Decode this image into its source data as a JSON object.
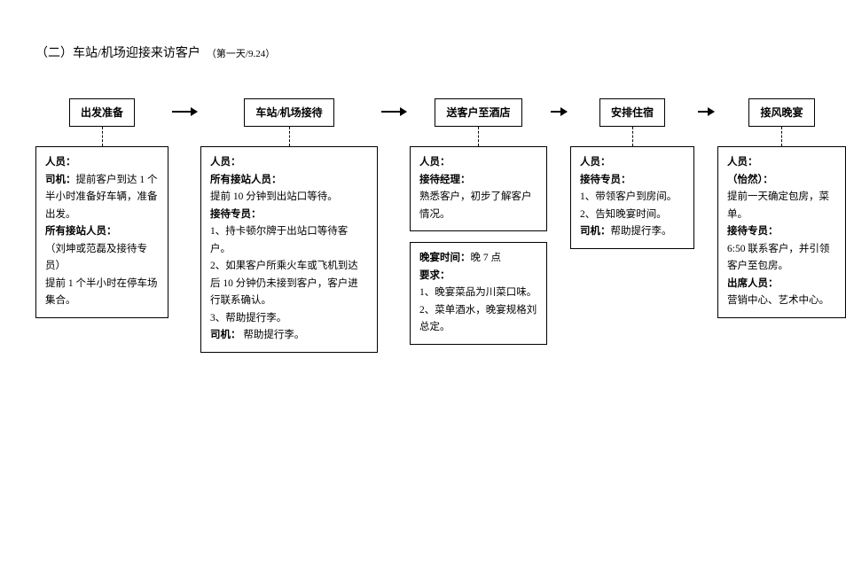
{
  "title": {
    "main": "（二）车站/机场迎接来访客户",
    "sub": "（第一天/9.24）"
  },
  "steps": [
    {
      "label": "出发准备"
    },
    {
      "label": "车站/机场接待"
    },
    {
      "label": "送客户至酒店"
    },
    {
      "label": "安排住宿"
    },
    {
      "label": "接风晚宴"
    }
  ],
  "col1": {
    "heading": "人员：",
    "r1": "司机：",
    "r1text": "提前客户到达 1 个半小时准备好车辆，准备出发。",
    "r2": "所有接站人员：",
    "r2text1": "（刘坤或范磊及接待专员）",
    "r2text2": "提前 1 个半小时在停车场集合。"
  },
  "col2": {
    "heading": "人员：",
    "r1": "所有接站人员：",
    "r1text": "提前 10 分钟到出站口等待。",
    "r2": "接待专员：",
    "r2l1": "1、持卡顿尔牌于出站口等待客户。",
    "r2l2": "2、如果客户所乘火车或飞机到达后 10 分钟仍未接到客户，客户进行联系确认。",
    "r2l3": "3、帮助提行李。",
    "r3": "司机：",
    "r3text": " 帮助提行李。"
  },
  "col3a": {
    "heading": "人员：",
    "r1": "接待经理：",
    "r1text": "熟悉客户，初步了解客户情况。"
  },
  "col3b": {
    "t1": "晚宴时间：",
    "t1v": "晚 7 点",
    "t2": "要求：",
    "l1": "1、晚宴菜品为川菜口味。",
    "l2": "2、菜单酒水，晚宴规格刘总定。"
  },
  "col4": {
    "heading": "人员：",
    "r1": "接待专员：",
    "l1": "1、带领客户到房间。",
    "l2": "2、告知晚宴时间。",
    "r2": "司机：",
    "r2text": "帮助提行李。"
  },
  "col5": {
    "heading": "人员：",
    "r1": "（怡然）：",
    "r1text": "提前一天确定包房，菜单。",
    "r2": "接待专员：",
    "r2text": "6:50 联系客户，并引领客户至包房。",
    "r3": "出席人员：",
    "r3text": "营销中心、艺术中心。"
  }
}
